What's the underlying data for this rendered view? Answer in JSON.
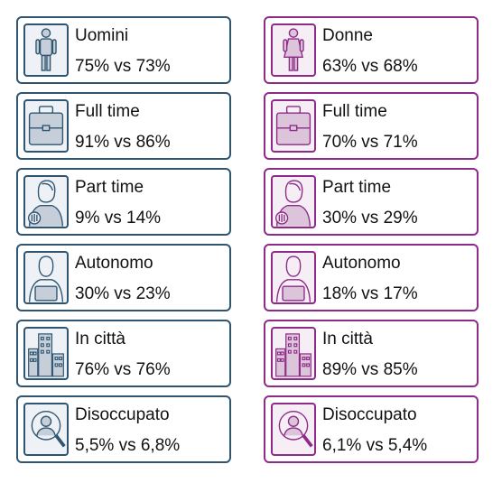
{
  "colors": {
    "left_accent": "#2f5570",
    "right_accent": "#8e2a88",
    "left_fill": "#c6cfd9",
    "right_fill": "#dcc4da"
  },
  "left": [
    {
      "icon": "man-icon",
      "label": "Uomini",
      "value": "75% vs 73%"
    },
    {
      "icon": "briefcase-icon",
      "label": "Full time",
      "value": "91% vs 86%"
    },
    {
      "icon": "person-shirt-icon",
      "label": "Part time",
      "value": "9% vs 14%"
    },
    {
      "icon": "person-laptop-icon",
      "label": "Autonomo",
      "value": "30% vs 23%"
    },
    {
      "icon": "city-buildings-icon",
      "label": "In città",
      "value": "76% vs 76%"
    },
    {
      "icon": "job-search-icon",
      "label": "Disoccupato",
      "value": "5,5% vs 6,8%"
    }
  ],
  "right": [
    {
      "icon": "woman-icon",
      "label": "Donne",
      "value": "63% vs 68%"
    },
    {
      "icon": "briefcase-icon",
      "label": "Full time",
      "value": "70% vs 71%"
    },
    {
      "icon": "person-shirt-icon",
      "label": "Part time",
      "value": "30% vs 29%"
    },
    {
      "icon": "person-laptop-icon",
      "label": "Autonomo",
      "value": "18% vs 17%"
    },
    {
      "icon": "city-buildings-icon",
      "label": "In città",
      "value": "89% vs 85%"
    },
    {
      "icon": "job-search-icon",
      "label": "Disoccupato",
      "value": "6,1% vs 5,4%"
    }
  ]
}
